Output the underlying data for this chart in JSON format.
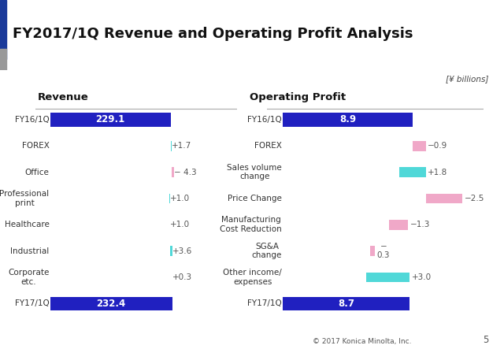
{
  "title": "FY2017/1Q Revenue and Operating Profit Analysis",
  "subtitle": "[¥ billions]",
  "background_color": "#ffffff",
  "blue_bar_color": "#2020c0",
  "cyan_bar_color": "#50d8d8",
  "pink_bar_color": "#f0a8c8",
  "revenue": {
    "title": "Revenue",
    "categories": [
      "FY16/1Q",
      "FOREX",
      "Office",
      "Professional\nprint",
      "Healthcare",
      "Industrial",
      "Corporate\netc.",
      "FY17/1Q"
    ],
    "values": [
      229.1,
      1.7,
      -4.3,
      1.0,
      1.0,
      3.6,
      0.3,
      232.4
    ],
    "labels": [
      "229.1",
      "+1.7",
      "− 4.3",
      "+1.0",
      "+1.0",
      "+3.6",
      "+0.3",
      "232.4"
    ],
    "bar_colors": [
      "blue",
      "cyan",
      "pink",
      "cyan",
      "cyan",
      "cyan",
      "cyan",
      "blue"
    ]
  },
  "profit": {
    "title": "Operating Profit",
    "categories": [
      "FY16/1Q",
      "FOREX",
      "Sales volume\nchange",
      "Price Change",
      "Manufacturing\nCost Reduction",
      "SG&A\nchange",
      "Other income/\nexpenses",
      "FY17/1Q"
    ],
    "values": [
      8.9,
      -0.9,
      1.8,
      -2.5,
      -1.3,
      -0.3,
      3.0,
      8.7
    ],
    "labels": [
      "8.9",
      "−0.9",
      "+1.8",
      "−2.5",
      "−1.3",
      "−\n0.3",
      "+3.0",
      "8.7"
    ],
    "bar_colors": [
      "blue",
      "pink",
      "cyan",
      "pink",
      "pink",
      "pink",
      "cyan",
      "blue"
    ]
  },
  "footer_text": "© 2017 Konica Minolta, Inc.",
  "page_number": "5",
  "header_bg": "#f2f2f2",
  "left_bar_blue": "#1a3a9a",
  "left_bar_gray": "#999999"
}
